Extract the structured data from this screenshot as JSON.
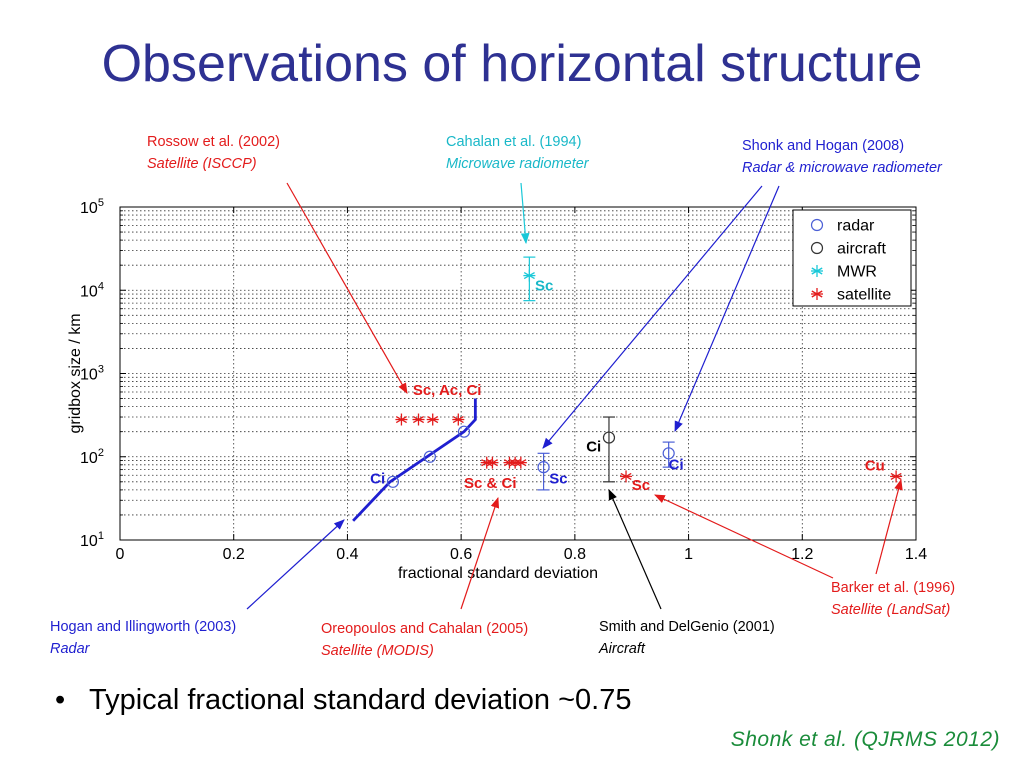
{
  "title": "Observations of horizontal structure",
  "chart_data": {
    "type": "scatter",
    "xlabel": "fractional standard deviation",
    "ylabel": "gridbox size / km",
    "xlim": [
      0,
      1.4
    ],
    "ylim": [
      10,
      100000
    ],
    "yscale": "log",
    "xticks": [
      "0",
      "0.2",
      "0.4",
      "0.6",
      "0.8",
      "1",
      "1.2",
      "1.4"
    ],
    "yticks": [
      "10^1",
      "10^2",
      "10^3",
      "10^4",
      "10^5"
    ],
    "grid": true,
    "legend_position": "top-right",
    "legend": [
      "radar",
      "aircraft",
      "MWR",
      "satellite"
    ],
    "series": [
      {
        "name": "radar",
        "color": "#4b5fd6",
        "marker": "circle",
        "points": [
          {
            "x": 0.48,
            "y": 50
          },
          {
            "x": 0.545,
            "y": 100
          },
          {
            "x": 0.605,
            "y": 200
          },
          {
            "x": 0.745,
            "y": 75,
            "ylo": 40,
            "yhi": 110
          },
          {
            "x": 0.965,
            "y": 110,
            "ylo": 75,
            "yhi": 150
          }
        ]
      },
      {
        "name": "aircraft",
        "color": "#333333",
        "marker": "circle",
        "points": [
          {
            "x": 0.86,
            "y": 170,
            "ylo": 50,
            "yhi": 300
          }
        ]
      },
      {
        "name": "MWR",
        "color": "#19c8d8",
        "marker": "star",
        "points": [
          {
            "x": 0.72,
            "y": 15000,
            "ylo": 7500,
            "yhi": 25000
          }
        ]
      },
      {
        "name": "satellite",
        "color": "#e31b1b",
        "marker": "star",
        "points": [
          {
            "x": 0.495,
            "y": 280
          },
          {
            "x": 0.525,
            "y": 280
          },
          {
            "x": 0.55,
            "y": 280
          },
          {
            "x": 0.595,
            "y": 280
          },
          {
            "x": 0.645,
            "y": 85
          },
          {
            "x": 0.655,
            "y": 85
          },
          {
            "x": 0.685,
            "y": 85
          },
          {
            "x": 0.695,
            "y": 85
          },
          {
            "x": 0.705,
            "y": 85
          },
          {
            "x": 0.89,
            "y": 58
          },
          {
            "x": 1.365,
            "y": 58
          }
        ]
      }
    ],
    "radar_curve": {
      "color": "#1f1fd0",
      "points": [
        [
          0.41,
          17
        ],
        [
          0.475,
          50
        ],
        [
          0.605,
          200
        ],
        [
          0.625,
          280
        ],
        [
          0.625,
          500
        ]
      ]
    },
    "annotations": [
      {
        "text": "Sc",
        "x": 0.73,
        "y": 10000,
        "color": "#19b8c8"
      },
      {
        "text": "Sc, Ac, Ci",
        "x": 0.515,
        "y": 550,
        "color": "#e31b1b"
      },
      {
        "text": "Ci",
        "x": 0.44,
        "y": 48,
        "color": "#1f1fd0"
      },
      {
        "text": "Sc & Ci",
        "x": 0.605,
        "y": 42,
        "color": "#e31b1b"
      },
      {
        "text": "Sc",
        "x": 0.755,
        "y": 48,
        "color": "#1f1fd0"
      },
      {
        "text": "Ci",
        "x": 0.82,
        "y": 115,
        "color": "#000000"
      },
      {
        "text": "Ci",
        "x": 0.965,
        "y": 70,
        "color": "#1f1fd0"
      },
      {
        "text": "Sc",
        "x": 0.9,
        "y": 40,
        "color": "#e31b1b"
      },
      {
        "text": "Cu",
        "x": 1.31,
        "y": 68,
        "color": "#e31b1b"
      }
    ]
  },
  "references": [
    {
      "name": "Rossow et al. (2002)",
      "method": "Satellite (ISCCP)"
    },
    {
      "name": "Cahalan et al. (1994)",
      "method": "Microwave radiometer"
    },
    {
      "name": "Shonk and Hogan (2008)",
      "method": "Radar & microwave radiometer"
    },
    {
      "name": "Hogan and Illingworth (2003)",
      "method": "Radar"
    },
    {
      "name": "Oreopoulos and Cahalan (2005)",
      "method": "Satellite (MODIS)"
    },
    {
      "name": "Smith and DelGenio (2001)",
      "method": "Aircraft"
    },
    {
      "name": "Barker et al. (1996)",
      "method": "Satellite (LandSat)"
    }
  ],
  "bullet": "Typical fractional standard deviation ~0.75",
  "credit": "Shonk et al. (QJRMS 2012)"
}
